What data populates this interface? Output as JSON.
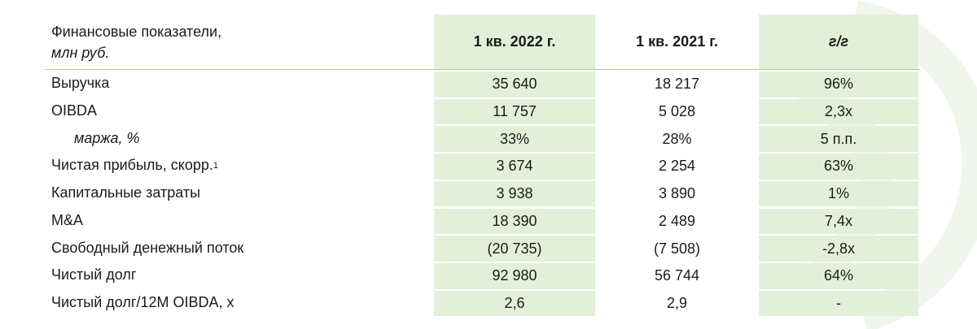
{
  "table": {
    "header": {
      "title": "Финансовые показатели,",
      "unit": "млн руб.",
      "columns": [
        "1 кв. 2022 г.",
        "1 кв. 2021 г.",
        "г/г"
      ]
    },
    "rows": [
      {
        "label": "Выручка",
        "cells": [
          "35 640",
          "18 217",
          "96%"
        ]
      },
      {
        "label": "OIBDA",
        "cells": [
          "11 757",
          "5 028",
          "2,3x"
        ]
      },
      {
        "label": "маржа, %",
        "cells": [
          "33%",
          "28%",
          "5 п.п."
        ]
      },
      {
        "label": "Чистая прибыль, скорр.",
        "note": "1",
        "cells": [
          "3 674",
          "2 254",
          "63%"
        ]
      },
      {
        "label": "Капитальные затраты",
        "cells": [
          "3 938",
          "3 890",
          "1%"
        ]
      },
      {
        "label": "M&A",
        "cells": [
          "18 390",
          "2 489",
          "7,4x"
        ]
      },
      {
        "label": "Свободный денежный поток",
        "cells": [
          "(20 735)",
          "(7 508)",
          "-2,8x"
        ]
      },
      {
        "label": "Чистый долг",
        "cells": [
          "92 980",
          "56 744",
          "64%"
        ]
      },
      {
        "label": "Чистый долг/12M OIBDA, x",
        "cells": [
          "2,6",
          "2,9",
          "-"
        ]
      }
    ]
  }
}
